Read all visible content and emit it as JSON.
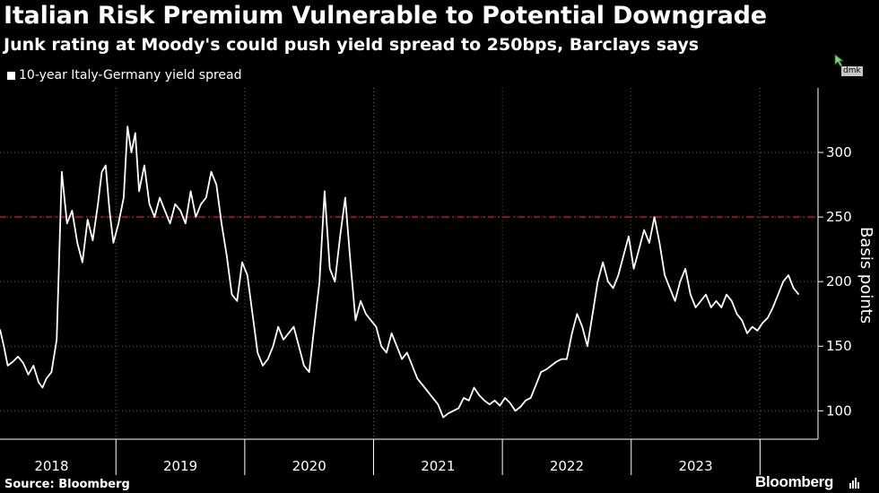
{
  "header": {
    "title": "Italian Risk Premium Vulnerable to Potential Downgrade",
    "subtitle": "Junk rating at Moody's could push yield spread to 250bps, Barclays says"
  },
  "footer": {
    "source": "Source: Bloomberg",
    "brand": "Bloomberg",
    "tag": "dmk"
  },
  "colors": {
    "background": "#000000",
    "line": "#ffffff",
    "reference_line": "#c8102e",
    "grid": "#555555"
  },
  "chart_data": {
    "type": "line",
    "title": "Italian Risk Premium Vulnerable to Potential Downgrade",
    "subtitle": "Junk rating at Moody's could push yield spread to 250bps, Barclays says",
    "ylabel": "Basis points",
    "xlabel": "",
    "ylim": [
      78,
      350
    ],
    "xlim": [
      2017.6,
      2023.95
    ],
    "y_ticks": [
      100,
      150,
      200,
      250,
      300
    ],
    "x_tick_labels": [
      "2018",
      "2019",
      "2020",
      "2021",
      "2022",
      "2023"
    ],
    "grid": true,
    "legend_position": "top-left",
    "reference_line": {
      "y": 250,
      "style": "dashed"
    },
    "series": [
      {
        "name": "10-year Italy-Germany yield spread",
        "x": [
          2017.6,
          2017.63,
          2017.66,
          2017.7,
          2017.74,
          2017.78,
          2017.82,
          2017.86,
          2017.9,
          2017.93,
          2017.96,
          2018.0,
          2018.04,
          2018.08,
          2018.12,
          2018.16,
          2018.2,
          2018.24,
          2018.28,
          2018.32,
          2018.36,
          2018.39,
          2018.42,
          2018.45,
          2018.48,
          2018.52,
          2018.56,
          2018.59,
          2018.62,
          2018.65,
          2018.68,
          2018.72,
          2018.76,
          2018.8,
          2018.84,
          2018.88,
          2018.92,
          2018.96,
          2019.0,
          2019.04,
          2019.08,
          2019.12,
          2019.16,
          2019.2,
          2019.24,
          2019.28,
          2019.32,
          2019.36,
          2019.4,
          2019.44,
          2019.48,
          2019.52,
          2019.56,
          2019.6,
          2019.64,
          2019.68,
          2019.72,
          2019.76,
          2019.8,
          2019.84,
          2019.88,
          2019.92,
          2019.96,
          2020.0,
          2020.04,
          2020.08,
          2020.12,
          2020.16,
          2020.2,
          2020.24,
          2020.28,
          2020.32,
          2020.36,
          2020.4,
          2020.44,
          2020.48,
          2020.52,
          2020.56,
          2020.6,
          2020.64,
          2020.68,
          2020.72,
          2020.76,
          2020.8,
          2020.84,
          2020.88,
          2020.92,
          2020.96,
          2021.0,
          2021.04,
          2021.08,
          2021.12,
          2021.16,
          2021.2,
          2021.24,
          2021.28,
          2021.32,
          2021.36,
          2021.4,
          2021.44,
          2021.48,
          2021.52,
          2021.56,
          2021.6,
          2021.64,
          2021.68,
          2021.72,
          2021.76,
          2021.8,
          2021.84,
          2021.88,
          2021.92,
          2021.96,
          2022.0,
          2022.04,
          2022.08,
          2022.12,
          2022.16,
          2022.2,
          2022.24,
          2022.28,
          2022.32,
          2022.36,
          2022.4,
          2022.44,
          2022.48,
          2022.52,
          2022.56,
          2022.6,
          2022.64,
          2022.68,
          2022.72,
          2022.76,
          2022.8,
          2022.84,
          2022.88,
          2022.92,
          2022.96,
          2023.0,
          2023.04,
          2023.08,
          2023.12,
          2023.16,
          2023.2,
          2023.24,
          2023.28,
          2023.32,
          2023.36,
          2023.4,
          2023.44,
          2023.48,
          2023.52,
          2023.56,
          2023.6,
          2023.64,
          2023.68,
          2023.72,
          2023.76,
          2023.8
        ],
        "values": [
          163,
          150,
          135,
          138,
          142,
          137,
          128,
          135,
          122,
          118,
          125,
          130,
          155,
          285,
          245,
          255,
          230,
          215,
          248,
          232,
          260,
          285,
          290,
          255,
          230,
          245,
          265,
          320,
          300,
          315,
          270,
          290,
          260,
          250,
          265,
          255,
          245,
          260,
          255,
          245,
          270,
          250,
          260,
          265,
          285,
          275,
          245,
          220,
          190,
          185,
          215,
          205,
          175,
          145,
          135,
          140,
          150,
          165,
          155,
          160,
          165,
          150,
          135,
          130,
          165,
          200,
          270,
          210,
          200,
          235,
          265,
          215,
          170,
          185,
          175,
          170,
          165,
          150,
          145,
          160,
          150,
          140,
          145,
          135,
          125,
          120,
          115,
          110,
          105,
          95,
          98,
          100,
          102,
          110,
          108,
          118,
          112,
          108,
          105,
          108,
          104,
          110,
          106,
          100,
          103,
          108,
          110,
          120,
          130,
          132,
          135,
          138,
          140,
          140,
          160,
          175,
          165,
          150,
          175,
          200,
          215,
          200,
          195,
          205,
          220,
          235,
          210,
          225,
          240,
          230,
          250,
          230,
          205,
          195,
          185,
          200,
          210,
          190,
          180,
          185,
          190,
          180,
          185,
          180,
          190,
          185,
          175,
          170,
          160,
          165,
          162,
          168,
          172,
          180,
          190,
          200,
          205,
          195,
          190
        ]
      }
    ]
  }
}
